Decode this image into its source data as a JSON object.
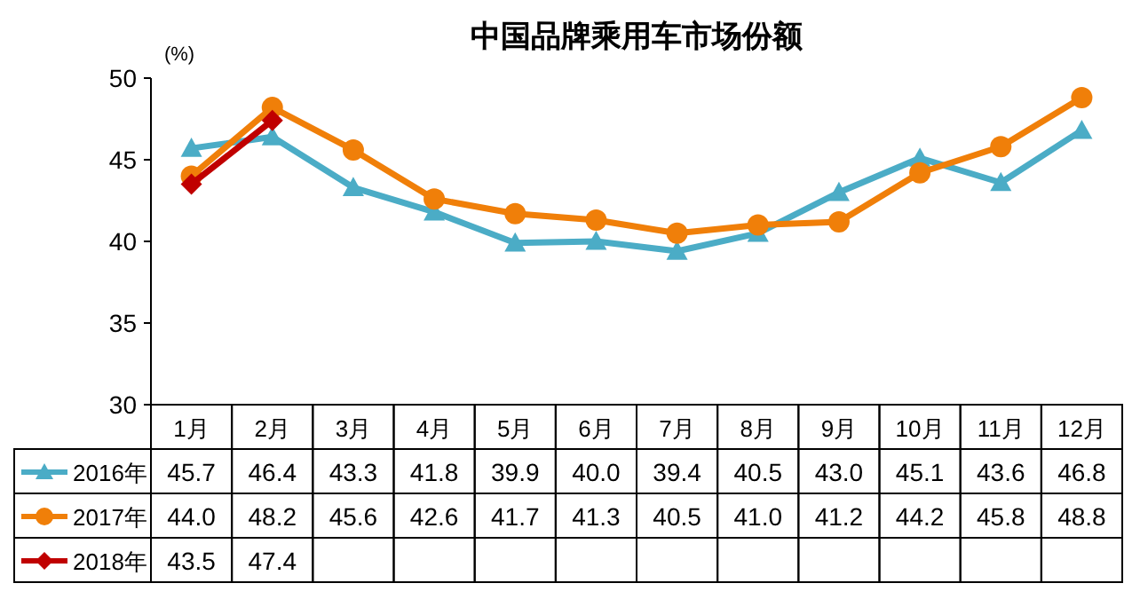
{
  "chart_data": {
    "type": "line",
    "title": "中国品牌乘用车市场份额",
    "ylabel": "(%)",
    "categories": [
      "1月",
      "2月",
      "3月",
      "4月",
      "5月",
      "6月",
      "7月",
      "8月",
      "9月",
      "10月",
      "11月",
      "12月"
    ],
    "ylim": [
      30,
      50
    ],
    "yticks": [
      30,
      35,
      40,
      45,
      50
    ],
    "legend": "bottom",
    "grid": false,
    "series": [
      {
        "name": "2016年",
        "color": "#4bacc6",
        "marker": "triangle",
        "values": [
          45.7,
          46.4,
          43.3,
          41.8,
          39.9,
          40.0,
          39.4,
          40.5,
          43.0,
          45.1,
          43.6,
          46.8
        ],
        "value_labels": [
          "45.7",
          "46.4",
          "43.3",
          "41.8",
          "39.9",
          "40.0",
          "39.4",
          "40.5",
          "43.0",
          "45.1",
          "43.6",
          "46.8"
        ]
      },
      {
        "name": "2017年",
        "color": "#f07f09",
        "marker": "circle",
        "values": [
          44.0,
          48.2,
          45.6,
          42.6,
          41.7,
          41.3,
          40.5,
          41.0,
          41.2,
          44.2,
          45.8,
          48.8
        ],
        "value_labels": [
          "44.0",
          "48.2",
          "45.6",
          "42.6",
          "41.7",
          "41.3",
          "40.5",
          "41.0",
          "41.2",
          "44.2",
          "45.8",
          "48.8"
        ]
      },
      {
        "name": "2018年",
        "color": "#c00000",
        "marker": "diamond",
        "values": [
          43.5,
          47.4,
          null,
          null,
          null,
          null,
          null,
          null,
          null,
          null,
          null,
          null
        ],
        "value_labels": [
          "43.5",
          "47.4",
          null,
          null,
          null,
          null,
          null,
          null,
          null,
          null,
          null,
          null
        ]
      }
    ]
  }
}
